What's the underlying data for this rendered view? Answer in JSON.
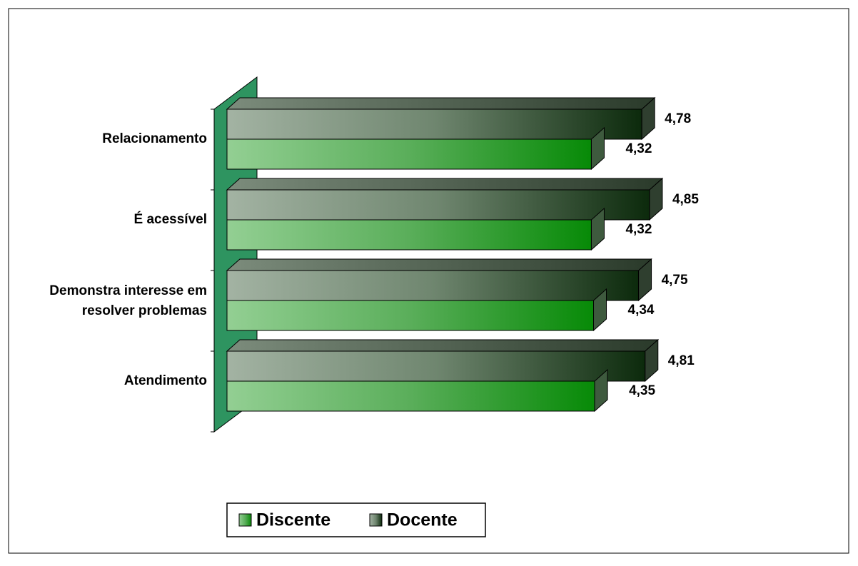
{
  "chart_data": {
    "type": "bar3d",
    "categories": [
      "Relacionamento",
      "É acessível",
      "Demonstra interesse em resolver problemas",
      "Atendimento"
    ],
    "series": [
      {
        "name": "Docente",
        "color": "#1f3d1f",
        "values": [
          4.78,
          4.85,
          4.75,
          4.81
        ],
        "value_labels": [
          "4,78",
          "4,85",
          "4,75",
          "4,81"
        ]
      },
      {
        "name": "Discente",
        "color": "#0a8a0a",
        "values": [
          4.32,
          4.32,
          4.34,
          4.35
        ],
        "value_labels": [
          "4,32",
          "4,32",
          "4,34",
          "4,35"
        ]
      }
    ],
    "xlim": [
      1,
      5
    ],
    "legend": "bottom"
  }
}
